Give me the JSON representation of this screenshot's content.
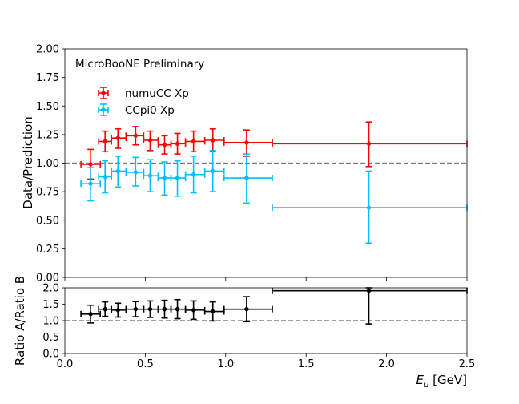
{
  "chart_data": [
    {
      "type": "scatter",
      "annotation": "MicroBooNE Preliminary",
      "ylabel": "Data/Prediction",
      "xlim": [
        0.0,
        2.5
      ],
      "ylim": [
        0.0,
        2.0
      ],
      "yticks": [
        "0.00",
        "0.25",
        "0.50",
        "0.75",
        "1.00",
        "1.25",
        "1.50",
        "1.75",
        "2.00"
      ],
      "reference_line": 1.0,
      "legend_position": "upper-left",
      "series": [
        {
          "name": "numuCC Xp",
          "color": "#ff0000",
          "points": [
            {
              "x": 0.16,
              "xlo": 0.1,
              "xhi": 0.22,
              "y": 0.99,
              "ylo": 0.86,
              "yhi": 1.12
            },
            {
              "x": 0.25,
              "xlo": 0.21,
              "xhi": 0.29,
              "y": 1.19,
              "ylo": 1.1,
              "yhi": 1.28
            },
            {
              "x": 0.33,
              "xlo": 0.29,
              "xhi": 0.38,
              "y": 1.22,
              "ylo": 1.13,
              "yhi": 1.3
            },
            {
              "x": 0.44,
              "xlo": 0.38,
              "xhi": 0.49,
              "y": 1.24,
              "ylo": 1.16,
              "yhi": 1.32
            },
            {
              "x": 0.53,
              "xlo": 0.49,
              "xhi": 0.58,
              "y": 1.2,
              "ylo": 1.11,
              "yhi": 1.28
            },
            {
              "x": 0.62,
              "xlo": 0.58,
              "xhi": 0.66,
              "y": 1.16,
              "ylo": 1.08,
              "yhi": 1.24
            },
            {
              "x": 0.7,
              "xlo": 0.66,
              "xhi": 0.75,
              "y": 1.17,
              "ylo": 1.08,
              "yhi": 1.26
            },
            {
              "x": 0.8,
              "xlo": 0.75,
              "xhi": 0.87,
              "y": 1.19,
              "ylo": 1.1,
              "yhi": 1.28
            },
            {
              "x": 0.92,
              "xlo": 0.87,
              "xhi": 0.99,
              "y": 1.2,
              "ylo": 1.1,
              "yhi": 1.3
            },
            {
              "x": 1.13,
              "xlo": 0.99,
              "xhi": 1.29,
              "y": 1.18,
              "ylo": 1.06,
              "yhi": 1.29
            },
            {
              "x": 1.89,
              "xlo": 1.29,
              "xhi": 2.5,
              "y": 1.17,
              "ylo": 0.97,
              "yhi": 1.36
            }
          ]
        },
        {
          "name": "CCpi0 Xp",
          "color": "#00bfff",
          "points": [
            {
              "x": 0.16,
              "xlo": 0.1,
              "xhi": 0.22,
              "y": 0.82,
              "ylo": 0.67,
              "yhi": 0.96
            },
            {
              "x": 0.25,
              "xlo": 0.21,
              "xhi": 0.29,
              "y": 0.88,
              "ylo": 0.74,
              "yhi": 1.02
            },
            {
              "x": 0.33,
              "xlo": 0.29,
              "xhi": 0.38,
              "y": 0.93,
              "ylo": 0.79,
              "yhi": 1.06
            },
            {
              "x": 0.44,
              "xlo": 0.38,
              "xhi": 0.49,
              "y": 0.92,
              "ylo": 0.8,
              "yhi": 1.05
            },
            {
              "x": 0.53,
              "xlo": 0.49,
              "xhi": 0.58,
              "y": 0.89,
              "ylo": 0.75,
              "yhi": 1.03
            },
            {
              "x": 0.62,
              "xlo": 0.58,
              "xhi": 0.66,
              "y": 0.87,
              "ylo": 0.72,
              "yhi": 1.01
            },
            {
              "x": 0.7,
              "xlo": 0.66,
              "xhi": 0.75,
              "y": 0.87,
              "ylo": 0.71,
              "yhi": 1.02
            },
            {
              "x": 0.8,
              "xlo": 0.75,
              "xhi": 0.87,
              "y": 0.9,
              "ylo": 0.74,
              "yhi": 1.06
            },
            {
              "x": 0.92,
              "xlo": 0.87,
              "xhi": 0.99,
              "y": 0.93,
              "ylo": 0.75,
              "yhi": 1.11
            },
            {
              "x": 1.13,
              "xlo": 0.99,
              "xhi": 1.29,
              "y": 0.87,
              "ylo": 0.65,
              "yhi": 1.08
            },
            {
              "x": 1.89,
              "xlo": 1.29,
              "xhi": 2.5,
              "y": 0.61,
              "ylo": 0.3,
              "yhi": 0.93
            }
          ]
        }
      ]
    },
    {
      "type": "scatter",
      "xlabel_math": "E",
      "xlabel_sub": "μ",
      "xlabel_unit": " [GeV]",
      "ylabel": "Ratio A/Ratio B",
      "xlim": [
        0.0,
        2.5
      ],
      "ylim": [
        0.0,
        2.0
      ],
      "xticks": [
        "0.0",
        "0.5",
        "1.0",
        "1.5",
        "2.0",
        "2.5"
      ],
      "yticks": [
        "0.0",
        "0.5",
        "1.0",
        "1.5",
        "2.0"
      ],
      "reference_line": 1.0,
      "series": [
        {
          "color": "#000000",
          "points": [
            {
              "x": 0.16,
              "xlo": 0.1,
              "xhi": 0.22,
              "y": 1.2,
              "ylo": 0.93,
              "yhi": 1.47
            },
            {
              "x": 0.25,
              "xlo": 0.21,
              "xhi": 0.29,
              "y": 1.35,
              "ylo": 1.13,
              "yhi": 1.57
            },
            {
              "x": 0.33,
              "xlo": 0.29,
              "xhi": 0.38,
              "y": 1.32,
              "ylo": 1.11,
              "yhi": 1.53
            },
            {
              "x": 0.44,
              "xlo": 0.38,
              "xhi": 0.49,
              "y": 1.35,
              "ylo": 1.12,
              "yhi": 1.58
            },
            {
              "x": 0.53,
              "xlo": 0.49,
              "xhi": 0.58,
              "y": 1.35,
              "ylo": 1.1,
              "yhi": 1.6
            },
            {
              "x": 0.62,
              "xlo": 0.58,
              "xhi": 0.66,
              "y": 1.35,
              "ylo": 1.08,
              "yhi": 1.62
            },
            {
              "x": 0.7,
              "xlo": 0.66,
              "xhi": 0.75,
              "y": 1.35,
              "ylo": 1.06,
              "yhi": 1.64
            },
            {
              "x": 0.8,
              "xlo": 0.75,
              "xhi": 0.87,
              "y": 1.32,
              "ylo": 1.04,
              "yhi": 1.6
            },
            {
              "x": 0.92,
              "xlo": 0.87,
              "xhi": 0.99,
              "y": 1.28,
              "ylo": 0.99,
              "yhi": 1.57
            },
            {
              "x": 1.13,
              "xlo": 0.99,
              "xhi": 1.29,
              "y": 1.35,
              "ylo": 0.97,
              "yhi": 1.73
            },
            {
              "x": 1.89,
              "xlo": 1.29,
              "xhi": 2.5,
              "y": 1.91,
              "ylo": 0.9,
              "yhi": 2.0
            }
          ]
        }
      ]
    }
  ]
}
